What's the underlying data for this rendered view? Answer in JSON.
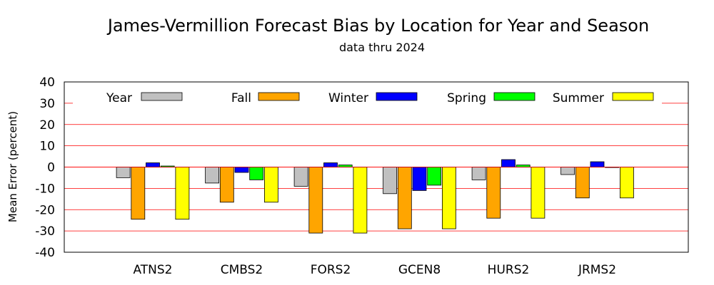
{
  "chart_data": {
    "type": "bar",
    "title": "James-Vermillion Forecast Bias by Location for Year and Season",
    "subtitle": "data thru 2024",
    "xlabel": "",
    "ylabel": "Mean Error (percent)",
    "ylim": [
      -40,
      40
    ],
    "yticks": [
      "40",
      "30",
      "20",
      "10",
      "0",
      "-10",
      "-20",
      "-30",
      "-40"
    ],
    "grid": true,
    "legend_position": "top",
    "categories": [
      "ATNS2",
      "CMBS2",
      "FORS2",
      "GCEN8",
      "HURS2",
      "JRMS2"
    ],
    "series": [
      {
        "name": "Year",
        "color": "#c0c0c0",
        "values": [
          -5,
          -7.5,
          -9,
          -12.5,
          -6,
          -3.5
        ]
      },
      {
        "name": "Fall",
        "color": "#ffa500",
        "values": [
          -24.5,
          -16.5,
          -31,
          -29,
          -24,
          -14.5
        ]
      },
      {
        "name": "Winter",
        "color": "#0000ff",
        "values": [
          2,
          -2.5,
          2,
          -11,
          3.5,
          2.5
        ]
      },
      {
        "name": "Spring",
        "color": "#00ff00",
        "values": [
          0.5,
          -6,
          1,
          -8.5,
          1,
          0
        ]
      },
      {
        "name": "Summer",
        "color": "#ffff00",
        "values": [
          -24.5,
          -16.5,
          -31,
          -29,
          -24,
          -14.5
        ]
      }
    ]
  }
}
